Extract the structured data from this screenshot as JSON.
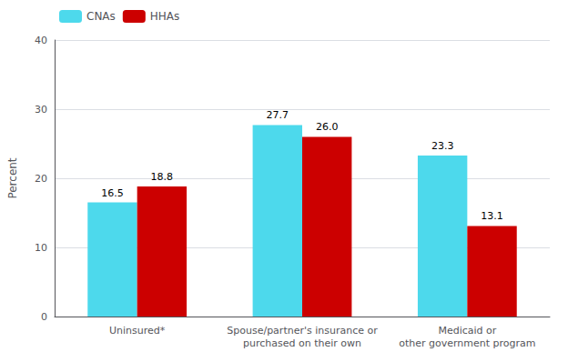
{
  "chart_data": {
    "type": "bar",
    "categories": [
      "Uninsured*",
      "Spouse/partner's insurance or\npurchased on their own",
      "Medicaid or\nother government program"
    ],
    "series": [
      {
        "name": "CNAs",
        "color": "#4DD9EC",
        "values": [
          16.5,
          27.7,
          23.3
        ]
      },
      {
        "name": "HHAs",
        "color": "#CC0000",
        "values": [
          18.8,
          26.0,
          13.1
        ],
        "value_labels": [
          "18.8",
          "26.0",
          "13.1"
        ]
      }
    ],
    "ylabel": "Percent",
    "ylim": [
      0,
      40
    ],
    "yticks": [
      0,
      10,
      20,
      30,
      40
    ],
    "grid": true,
    "legend": "upper left",
    "data_labels": true
  }
}
